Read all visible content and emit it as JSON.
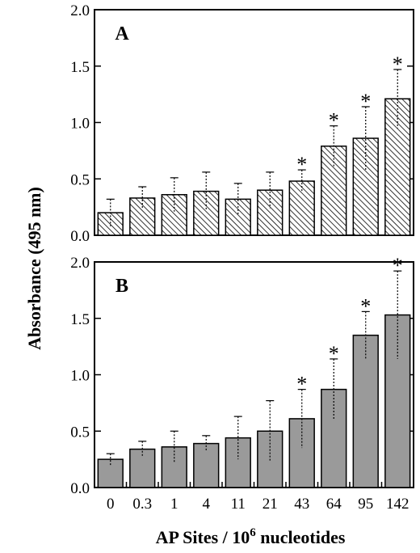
{
  "chart_data": {
    "type": "bar",
    "shared_x": {
      "categories": [
        "0",
        "0.3",
        "1",
        "4",
        "11",
        "21",
        "43",
        "64",
        "95",
        "142"
      ],
      "xlabel_main": "AP Sites / 10",
      "xlabel_sup": "6",
      "xlabel_tail": " nucleotides"
    },
    "shared_y": {
      "ylabel": "Absorbance (495 nm)",
      "ylim": [
        0,
        2.0
      ],
      "ticks": [
        "0.0",
        "0.5",
        "1.0",
        "1.5",
        "2.0"
      ]
    },
    "colors": {
      "panel_A_fill": "hatched",
      "panel_B_fill": "#9a9a9a",
      "outline": "#000000"
    },
    "panels": [
      {
        "label": "A",
        "values": [
          0.2,
          0.33,
          0.36,
          0.39,
          0.32,
          0.4,
          0.48,
          0.79,
          0.86,
          1.21
        ],
        "errors": [
          0.12,
          0.1,
          0.15,
          0.17,
          0.14,
          0.16,
          0.1,
          0.18,
          0.28,
          0.26
        ],
        "significant": [
          false,
          false,
          false,
          false,
          false,
          false,
          true,
          true,
          true,
          true
        ],
        "marker": "*"
      },
      {
        "label": "B",
        "values": [
          0.25,
          0.34,
          0.36,
          0.39,
          0.44,
          0.5,
          0.61,
          0.87,
          1.35,
          1.53
        ],
        "errors": [
          0.05,
          0.07,
          0.14,
          0.07,
          0.19,
          0.27,
          0.26,
          0.27,
          0.21,
          0.39
        ],
        "significant": [
          false,
          false,
          false,
          false,
          false,
          false,
          true,
          true,
          true,
          true
        ],
        "marker": "*"
      }
    ]
  }
}
